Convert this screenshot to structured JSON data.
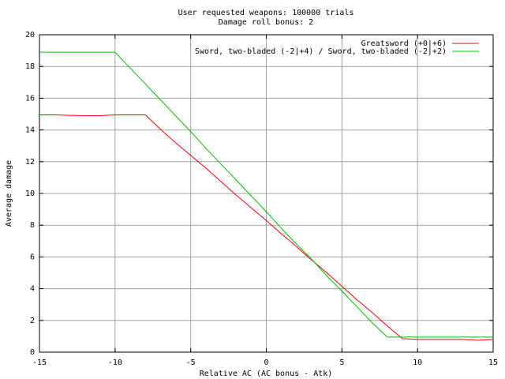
{
  "chart_data": {
    "type": "line",
    "title": "User requested weapons: 100000 trials",
    "subtitle": "Damage roll bonus: 2",
    "xlabel": "Relative AC (AC bonus - Atk)",
    "ylabel": "Average damage",
    "xlim": [
      -15,
      15
    ],
    "ylim": [
      0,
      20
    ],
    "xticks": [
      -15,
      -10,
      -5,
      0,
      5,
      10,
      15
    ],
    "yticks": [
      0,
      2,
      4,
      6,
      8,
      10,
      12,
      14,
      16,
      18,
      20
    ],
    "grid": true,
    "legend_position": "top-right",
    "series": [
      {
        "name": "Greatsword (+0|+6)",
        "color": "#ff0000",
        "x": [
          -15,
          -14,
          -13,
          -12,
          -11,
          -10,
          -9,
          -8,
          -7,
          -6,
          -5,
          -4,
          -3,
          -2,
          -1,
          0,
          1,
          2,
          3,
          4,
          5,
          6,
          7,
          8,
          9,
          10,
          11,
          12,
          13,
          14,
          15
        ],
        "y": [
          14.95,
          14.95,
          14.92,
          14.9,
          14.9,
          14.95,
          14.95,
          14.95,
          14.05,
          13.2,
          12.4,
          11.6,
          10.75,
          9.9,
          9.1,
          8.3,
          7.45,
          6.65,
          5.8,
          5.0,
          4.15,
          3.3,
          2.5,
          1.65,
          0.85,
          0.8,
          0.8,
          0.8,
          0.8,
          0.75,
          0.8
        ]
      },
      {
        "name": "Sword, two-bladed (-2|+4) / Sword, two-bladed (-2|+2)",
        "color": "#00c000",
        "x": [
          -15,
          -14,
          -13,
          -12,
          -11,
          -10,
          -9,
          -8,
          -7,
          -6,
          -5,
          -4,
          -3,
          -2,
          -1,
          0,
          1,
          2,
          3,
          4,
          5,
          6,
          7,
          8,
          9,
          10,
          11,
          12,
          13,
          14,
          15
        ],
        "y": [
          18.9,
          18.9,
          18.9,
          18.9,
          18.9,
          18.9,
          17.9,
          16.9,
          15.9,
          14.9,
          13.9,
          12.85,
          11.85,
          10.85,
          9.85,
          8.85,
          7.8,
          6.8,
          5.85,
          4.8,
          3.85,
          2.85,
          1.85,
          0.95,
          0.95,
          0.95,
          0.95,
          0.95,
          0.95,
          0.95,
          0.95
        ]
      }
    ]
  }
}
